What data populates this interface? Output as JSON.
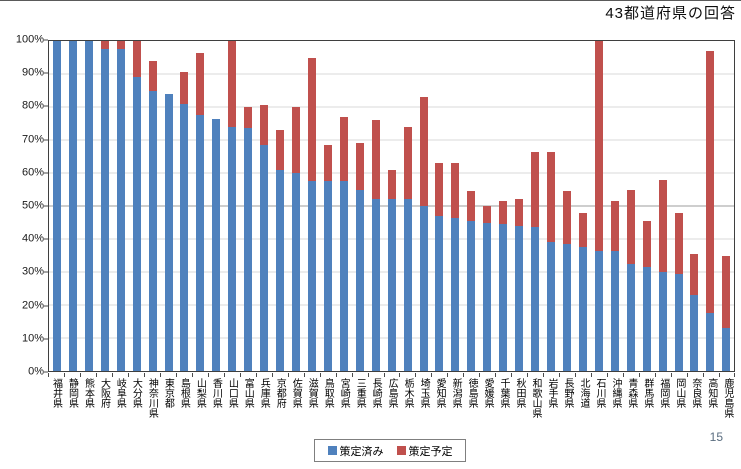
{
  "page": {
    "page_number": "15"
  },
  "chart_data": {
    "type": "bar",
    "stacked": true,
    "title": "43都道府県の回答",
    "xlabel": "",
    "ylabel": "",
    "ylim": [
      0,
      100
    ],
    "ytick_labels": [
      "0%",
      "10%",
      "20%",
      "30%",
      "40%",
      "50%",
      "60%",
      "70%",
      "80%",
      "90%",
      "100%"
    ],
    "grid": true,
    "legend_position": "bottom",
    "categories": [
      "福井県",
      "静岡県",
      "熊本県",
      "大阪府",
      "岐阜県",
      "大分県",
      "神奈川県",
      "東京都",
      "島根県",
      "山梨県",
      "香川県",
      "山口県",
      "富山県",
      "兵庫県",
      "京都府",
      "佐賀県",
      "滋賀県",
      "鳥取県",
      "宮崎県",
      "三重県",
      "長崎県",
      "広島県",
      "栃木県",
      "埼玉県",
      "愛知県",
      "新潟県",
      "徳島県",
      "愛媛県",
      "千葉県",
      "秋田県",
      "和歌山県",
      "岩手県",
      "長野県",
      "北海道",
      "石川県",
      "沖縄県",
      "青森県",
      "群馬県",
      "福岡県",
      "岡山県",
      "奈良県",
      "高知県",
      "鹿児島県"
    ],
    "series": [
      {
        "name": "策定済み",
        "color": "#4f81bd",
        "values": [
          100,
          100,
          100,
          97.5,
          97.5,
          89,
          85,
          84,
          81,
          77.5,
          76.5,
          74,
          73.5,
          68.5,
          61,
          60,
          57.5,
          57.5,
          57.5,
          55,
          52,
          52,
          52,
          50,
          47,
          46.5,
          45.5,
          45,
          44.5,
          44,
          43.5,
          39,
          38.5,
          37.5,
          36.5,
          36.5,
          32.5,
          31.5,
          30,
          29.5,
          23,
          17.5,
          13
        ]
      },
      {
        "name": "策定予定",
        "color": "#c0504d",
        "values": [
          0,
          0,
          0,
          2.5,
          2.5,
          11,
          9,
          0,
          9.5,
          19,
          0,
          26,
          6.5,
          12,
          12,
          20,
          37.5,
          11,
          19.5,
          14,
          24,
          9,
          22,
          33,
          16,
          16.5,
          9,
          5,
          7,
          8,
          23,
          27.5,
          16,
          10.5,
          63.5,
          15,
          22.5,
          14,
          28,
          18.5,
          12.5,
          79.5,
          22
        ]
      }
    ]
  }
}
